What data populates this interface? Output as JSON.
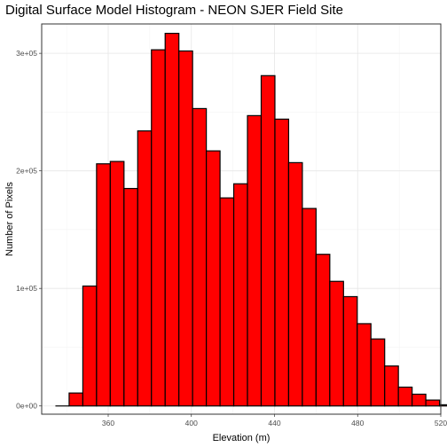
{
  "chart_data": {
    "type": "bar",
    "title": "Digital Surface Model Histogram - NEON SJER Field Site",
    "xlabel": "Elevation (m)",
    "ylabel": "Number of Pixels",
    "xlim": [
      328,
      520
    ],
    "ylim": [
      -7000,
      325000
    ],
    "x_ticks": [
      360,
      400,
      440,
      480,
      520
    ],
    "x_tick_labels": [
      "360",
      "400",
      "440",
      "480",
      "520"
    ],
    "y_ticks": [
      0,
      100000,
      200000,
      300000
    ],
    "y_tick_labels": [
      "0e+00",
      "1e+05",
      "2e+05",
      "3e+05"
    ],
    "grid": true,
    "legend": "none",
    "bar_fill": "#ff0000",
    "bar_outline": "#000000",
    "bins": [
      {
        "from": 334.6,
        "to": 341.2,
        "count": 0
      },
      {
        "from": 341.2,
        "to": 347.8,
        "count": 11000
      },
      {
        "from": 347.8,
        "to": 354.4,
        "count": 102000
      },
      {
        "from": 354.4,
        "to": 361.0,
        "count": 206000
      },
      {
        "from": 361.0,
        "to": 367.6,
        "count": 208000
      },
      {
        "from": 367.6,
        "to": 374.2,
        "count": 185000
      },
      {
        "from": 374.2,
        "to": 380.8,
        "count": 234000
      },
      {
        "from": 380.8,
        "to": 387.4,
        "count": 303000
      },
      {
        "from": 387.4,
        "to": 394.0,
        "count": 317000
      },
      {
        "from": 394.0,
        "to": 400.6,
        "count": 302000
      },
      {
        "from": 400.6,
        "to": 407.2,
        "count": 253000
      },
      {
        "from": 407.2,
        "to": 413.8,
        "count": 217000
      },
      {
        "from": 413.8,
        "to": 420.4,
        "count": 177000
      },
      {
        "from": 420.4,
        "to": 427.0,
        "count": 189000
      },
      {
        "from": 427.0,
        "to": 433.6,
        "count": 247000
      },
      {
        "from": 433.6,
        "to": 440.2,
        "count": 281000
      },
      {
        "from": 440.2,
        "to": 446.8,
        "count": 244000
      },
      {
        "from": 446.8,
        "to": 453.4,
        "count": 207000
      },
      {
        "from": 453.4,
        "to": 460.0,
        "count": 168000
      },
      {
        "from": 460.0,
        "to": 466.6,
        "count": 129000
      },
      {
        "from": 466.6,
        "to": 473.2,
        "count": 106000
      },
      {
        "from": 473.2,
        "to": 479.8,
        "count": 93000
      },
      {
        "from": 479.8,
        "to": 486.4,
        "count": 70000
      },
      {
        "from": 486.4,
        "to": 493.0,
        "count": 57000
      },
      {
        "from": 493.0,
        "to": 499.6,
        "count": 34000
      },
      {
        "from": 499.6,
        "to": 506.2,
        "count": 16000
      },
      {
        "from": 506.2,
        "to": 512.8,
        "count": 10000
      },
      {
        "from": 512.8,
        "to": 519.4,
        "count": 5000
      },
      {
        "from": 519.4,
        "to": 526.0,
        "count": 1000
      },
      {
        "from": 526.0,
        "to": 532.6,
        "count": 0
      }
    ]
  }
}
